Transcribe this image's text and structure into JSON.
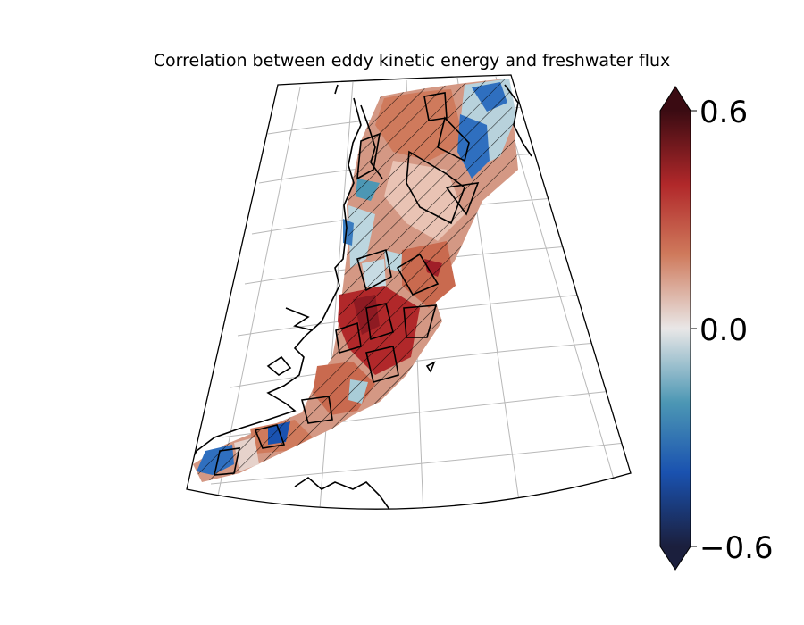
{
  "title": "Correlation between eddy kinetic energy and freshwater flux",
  "colorbar": {
    "ticks": [
      {
        "value": 0.6,
        "label": "0.6"
      },
      {
        "value": 0.0,
        "label": "0.0"
      },
      {
        "value": -0.6,
        "label": "−0.6"
      }
    ],
    "vmin": -0.6,
    "vmax": 0.6,
    "extend": "both",
    "colors": [
      "#1b1f3d",
      "#1a52b0",
      "#4c97b4",
      "#e9e7e7",
      "#cf7a5c",
      "#b1282a",
      "#3a0b12"
    ]
  },
  "map": {
    "projection": "conic",
    "graticule": true,
    "hatching": "significant regions",
    "field_colors": {
      "positive": "#c43d2c",
      "neutral": "#ecd9d2",
      "negative": "#2f6fbf"
    }
  }
}
